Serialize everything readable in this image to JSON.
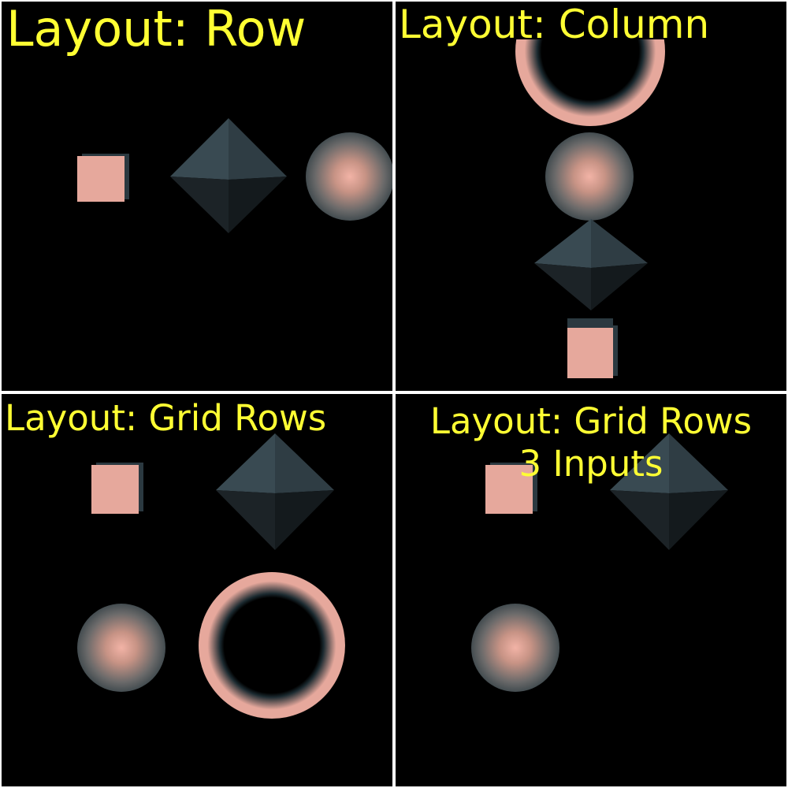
{
  "panels": {
    "row": {
      "title": "Layout: Row"
    },
    "column": {
      "title": "Layout: Column"
    },
    "grid_rows": {
      "title": "Layout: Grid Rows"
    },
    "grid_rows_3": {
      "title": "Layout: Grid Rows\n3 Inputs"
    }
  },
  "colors": {
    "background": "#000000",
    "divider": "#ffffff",
    "title_text": "#ffff33",
    "shape_face": "#e6a89c",
    "shape_dark": "#2b3940"
  },
  "shapes": [
    "cube",
    "octahedron",
    "sphere",
    "torus"
  ]
}
